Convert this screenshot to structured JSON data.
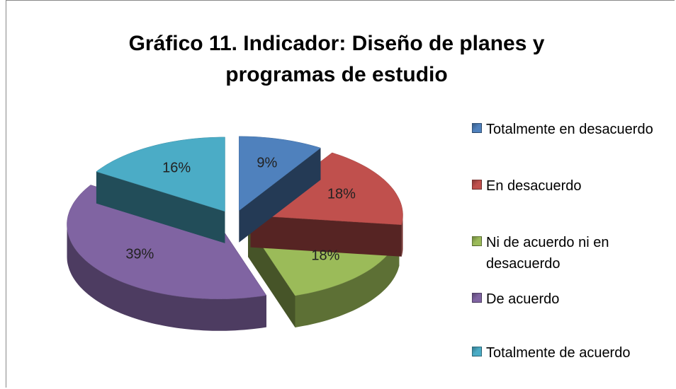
{
  "chart_data": {
    "type": "pie",
    "title": "Gráfico 11. Indicador: Diseño de planes y programas de estudio",
    "categories": [
      "Totalmente en desacuerdo",
      "En desacuerdo",
      "Ni de acuerdo ni en desacuerdo",
      "De acuerdo",
      "Totalmente de acuerdo"
    ],
    "values": [
      9,
      18,
      18,
      39,
      16
    ],
    "value_labels": [
      "9%",
      "18%",
      "18%",
      "39%",
      "16%"
    ],
    "colors": [
      "#4f81bd",
      "#c0504d",
      "#9bbb59",
      "#8064a2",
      "#4bacc6"
    ],
    "legend": "right"
  }
}
